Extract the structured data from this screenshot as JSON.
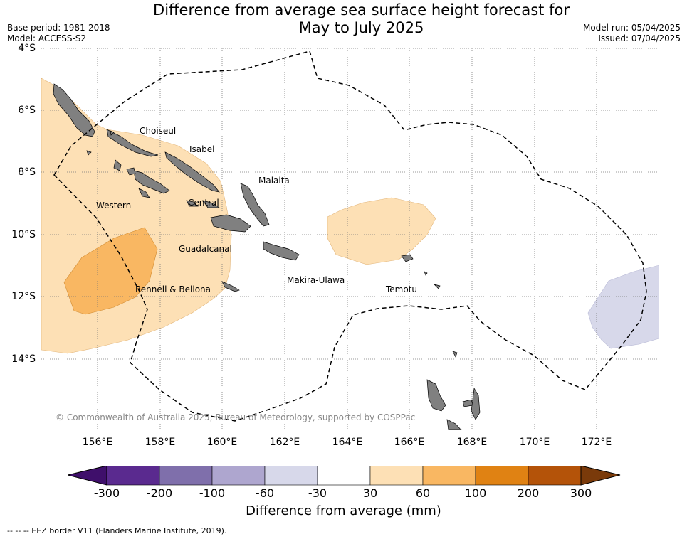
{
  "title_line1": "Difference from average sea surface height forecast for",
  "title_line2": "May to July 2025",
  "base_period": "Base period: 1981-2018",
  "model": "Model: ACCESS-S2",
  "model_run": "Model run: 05/04/2025",
  "issued": "Issued: 07/04/2025",
  "lat_labels": [
    "4°S",
    "6°S",
    "8°S",
    "10°S",
    "12°S",
    "14°S"
  ],
  "lon_labels": [
    "156°E",
    "158°E",
    "160°E",
    "162°E",
    "164°E",
    "166°E",
    "168°E",
    "170°E",
    "172°E"
  ],
  "places": {
    "choiseul": "Choiseul",
    "isabel": "Isabel",
    "malaita": "Malaita",
    "western": "Western",
    "central": "Central",
    "guadalcanal": "Guadalcanal",
    "makira": "Makira-Ulawa",
    "rennell": "Rennell & Bellona",
    "temotu": "Temotu"
  },
  "copyright": "© Commonwealth of Australia 2025, Bureau of Meteorology, supported by COSPPac",
  "legend": {
    "title": "Difference from average (mm)",
    "ticks": [
      "-300",
      "-200",
      "-100",
      "-60",
      "-30",
      "30",
      "60",
      "100",
      "200",
      "300"
    ],
    "colors": [
      "#3f0f6b",
      "#5a2a8f",
      "#7f6fab",
      "#aea6cf",
      "#d7d8ea",
      "#ffffff",
      "#fde0b5",
      "#f9b762",
      "#e08213",
      "#b45309",
      "#7a3a0a"
    ]
  },
  "footer": "--  --  -- EEZ border V11 (Flanders Marine Institute, 2019)."
}
